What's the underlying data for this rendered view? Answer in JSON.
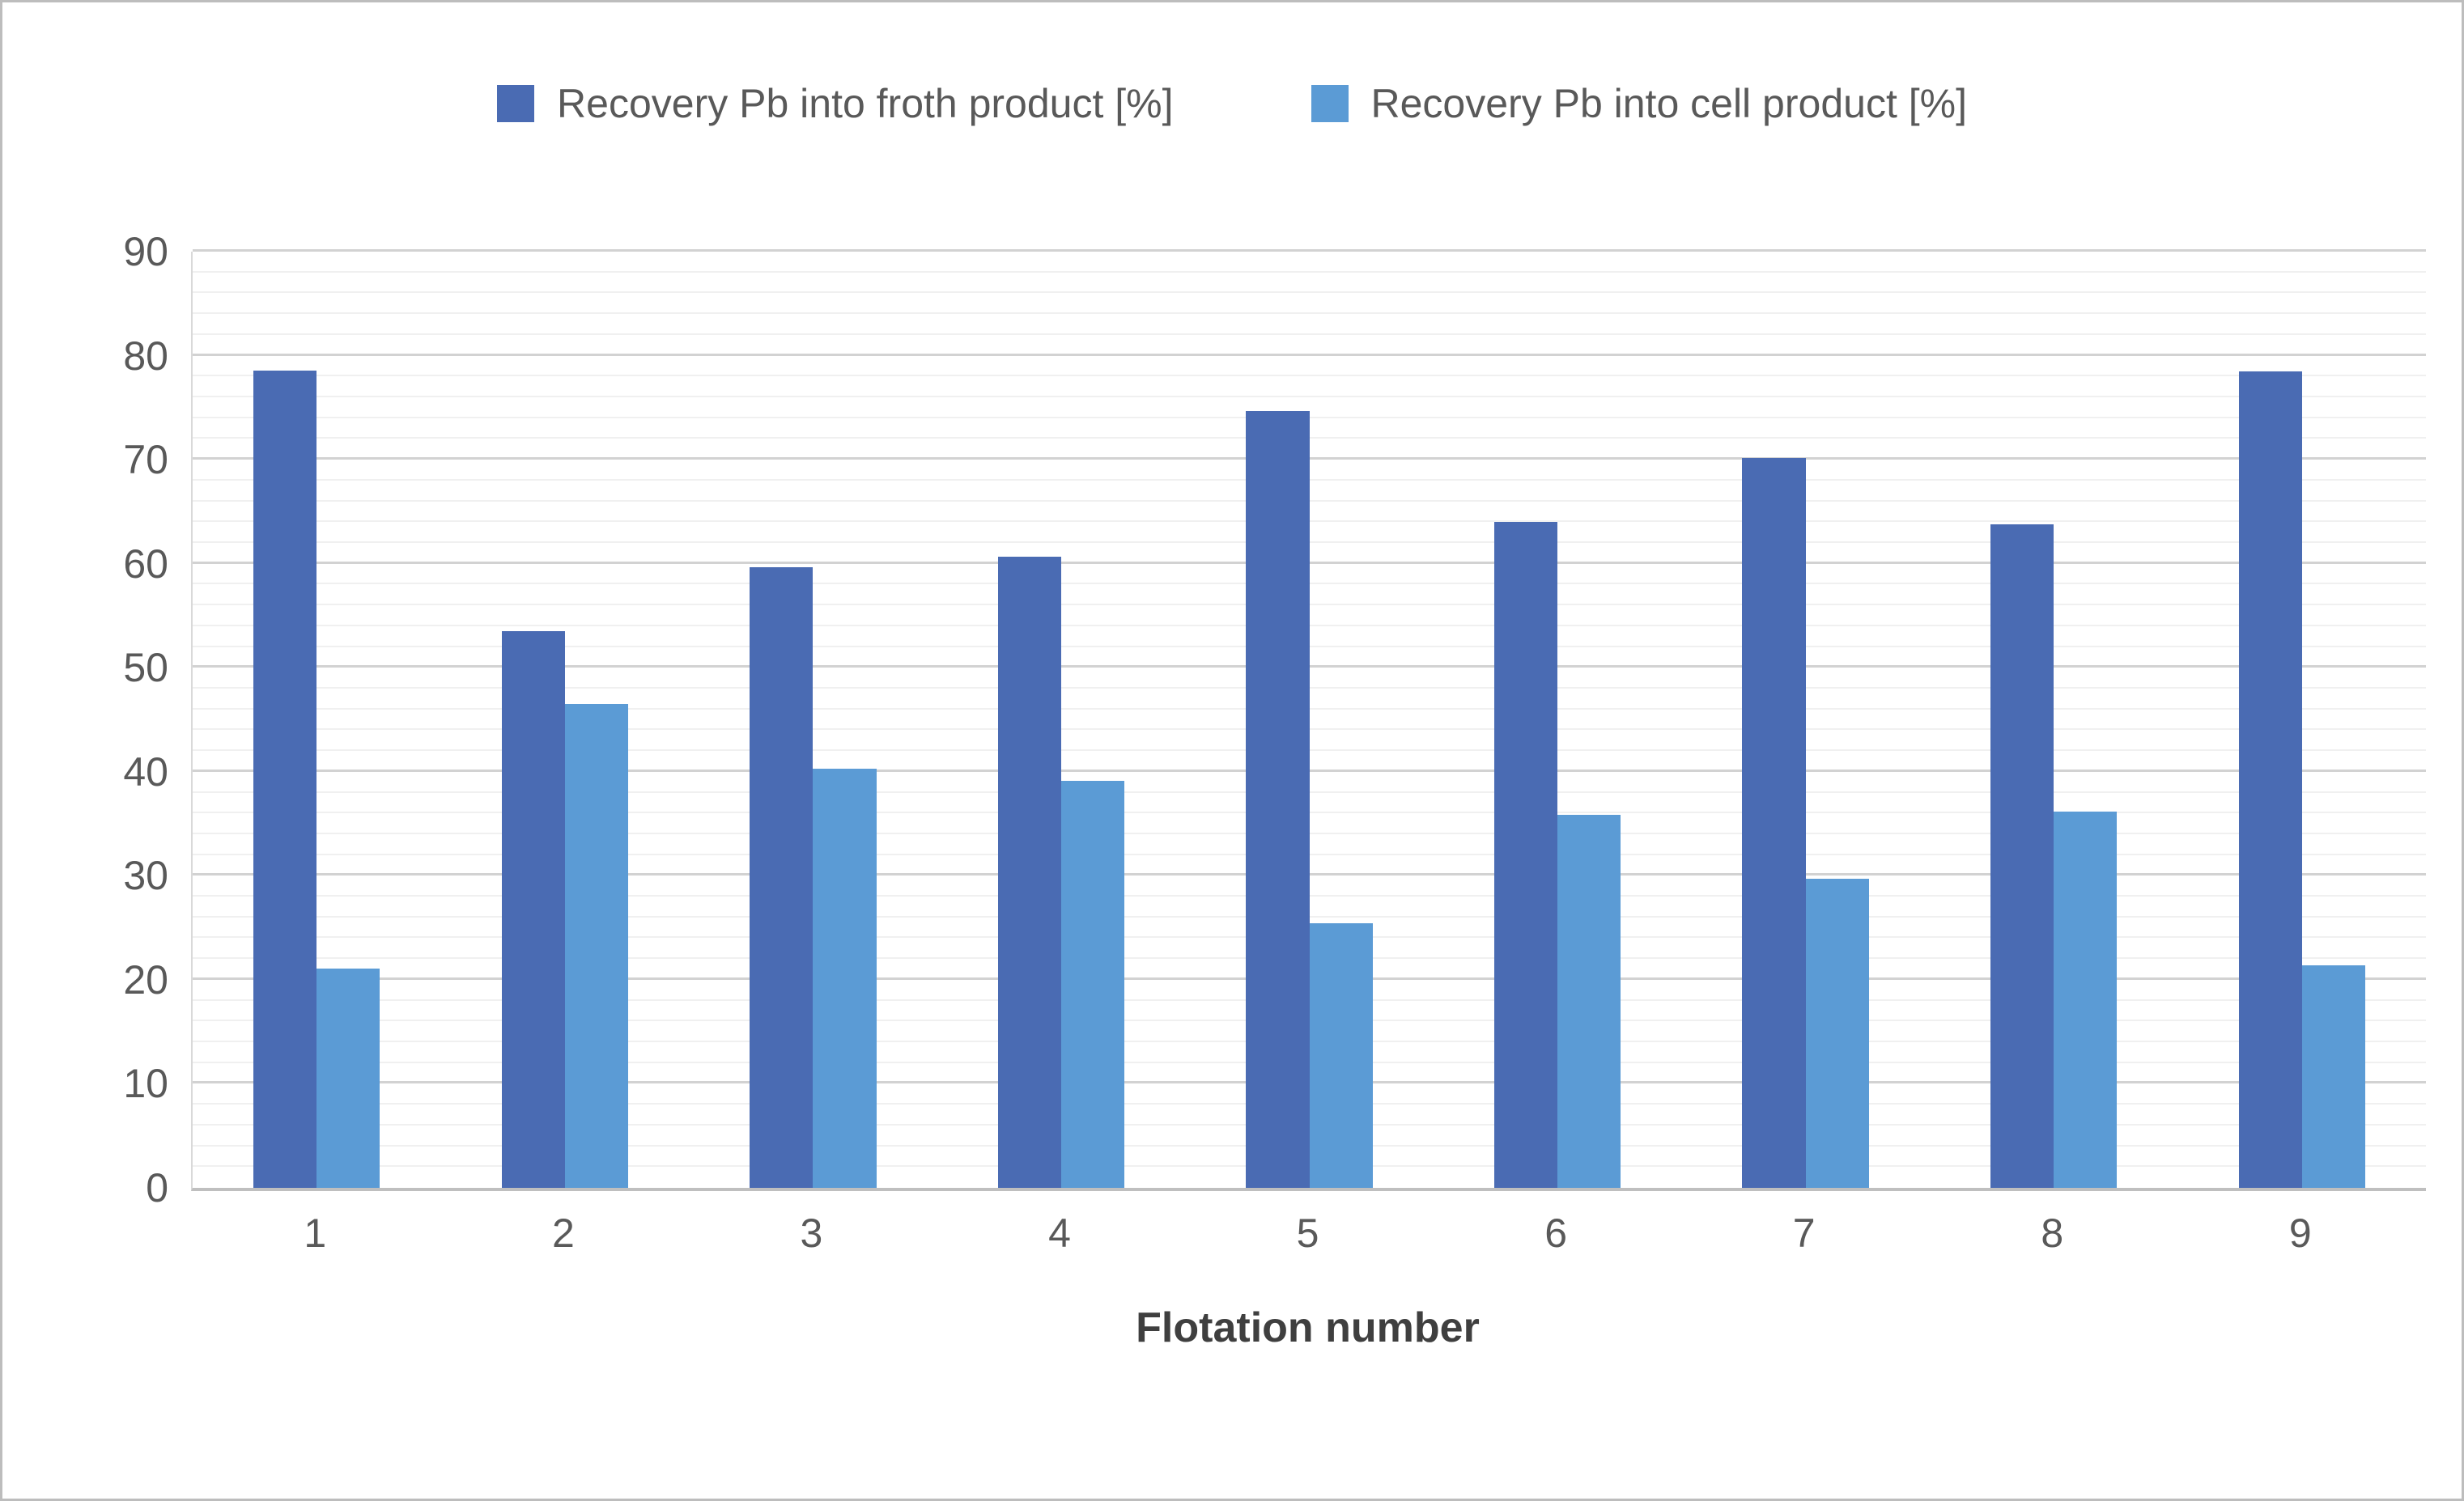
{
  "chart_data": {
    "type": "bar",
    "title": "",
    "xlabel": "Flotation number",
    "ylabel": "",
    "ylim": [
      0,
      90
    ],
    "y_major_step": 10,
    "y_minor_step": 2,
    "grid": true,
    "legend_position": "top",
    "categories": [
      "1",
      "2",
      "3",
      "4",
      "5",
      "6",
      "7",
      "8",
      "9"
    ],
    "series": [
      {
        "name": "Recovery Pb into froth product [%]",
        "color": "#4a6bb3",
        "values": [
          78.6,
          53.5,
          59.7,
          60.7,
          74.7,
          64.0,
          70.2,
          63.8,
          78.5
        ]
      },
      {
        "name": "Recovery Pb into cell product [%]",
        "color": "#5b9bd5",
        "values": [
          21.1,
          46.5,
          40.3,
          39.1,
          25.4,
          35.9,
          29.7,
          36.2,
          21.4
        ]
      }
    ],
    "colors": {
      "axis_baseline": "#bfbfbf",
      "grid_major": "#d2d2d2",
      "grid_minor": "#f0f0f0",
      "tick_text": "#595959",
      "title_text": "#3f3f3f"
    }
  }
}
